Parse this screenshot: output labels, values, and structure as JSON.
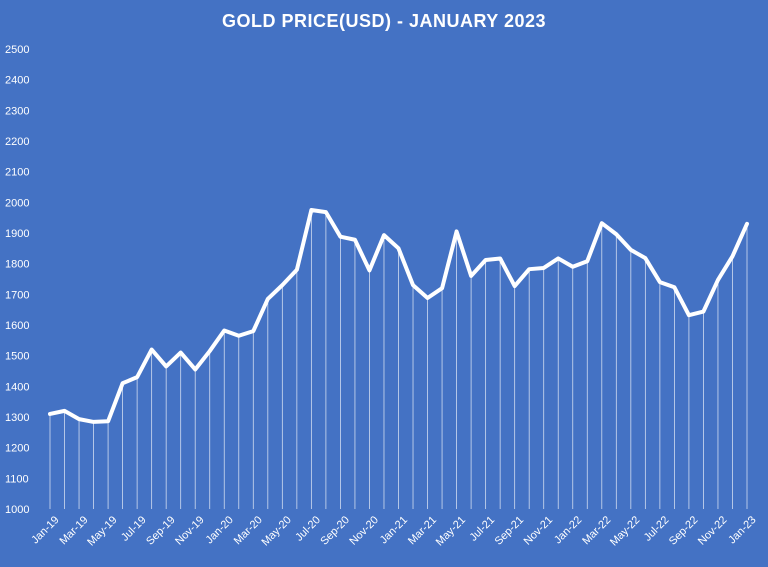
{
  "chart_data": {
    "type": "line",
    "title": "GOLD PRICE(USD) - JANUARY 2023",
    "xlabel": "",
    "ylabel": "",
    "ylim": [
      1000,
      2500
    ],
    "yticks": [
      1000,
      1100,
      1200,
      1300,
      1400,
      1500,
      1600,
      1700,
      1800,
      1900,
      2000,
      2100,
      2200,
      2300,
      2400,
      2500
    ],
    "grid": false,
    "legend": "none",
    "x": [
      "Jan-19",
      "Feb-19",
      "Mar-19",
      "Apr-19",
      "May-19",
      "Jun-19",
      "Jul-19",
      "Aug-19",
      "Sep-19",
      "Oct-19",
      "Nov-19",
      "Dec-19",
      "Jan-20",
      "Feb-20",
      "Mar-20",
      "Apr-20",
      "May-20",
      "Jun-20",
      "Jul-20",
      "Aug-20",
      "Sep-20",
      "Oct-20",
      "Nov-20",
      "Dec-20",
      "Jan-21",
      "Feb-21",
      "Mar-21",
      "Apr-21",
      "May-21",
      "Jun-21",
      "Jul-21",
      "Aug-21",
      "Sep-21",
      "Oct-21",
      "Nov-21",
      "Dec-21",
      "Jan-22",
      "Feb-22",
      "Mar-22",
      "Apr-22",
      "May-22",
      "Jun-22",
      "Jul-22",
      "Aug-22",
      "Sep-22",
      "Oct-22",
      "Nov-22",
      "Dec-22",
      "Jan-23"
    ],
    "x_tick_labels": [
      "Jan-19",
      "Mar-19",
      "May-19",
      "Jul-19",
      "Sep-19",
      "Nov-19",
      "Jan-20",
      "Mar-20",
      "May-20",
      "Jul-20",
      "Sep-20",
      "Nov-20",
      "Jan-21",
      "Mar-21",
      "May-21",
      "Jul-21",
      "Sep-21",
      "Nov-21",
      "Jan-22",
      "Mar-22",
      "May-22",
      "Jul-22",
      "Sep-22",
      "Nov-22",
      "Jan-23"
    ],
    "series": [
      {
        "values": [
          1310,
          1320,
          1293,
          1284,
          1286,
          1410,
          1430,
          1520,
          1465,
          1510,
          1455,
          1515,
          1582,
          1565,
          1580,
          1685,
          1730,
          1780,
          1975,
          1968,
          1888,
          1878,
          1778,
          1893,
          1850,
          1730,
          1688,
          1720,
          1905,
          1760,
          1812,
          1817,
          1727,
          1782,
          1786,
          1817,
          1790,
          1808,
          1932,
          1896,
          1845,
          1818,
          1740,
          1723,
          1632,
          1644,
          1747,
          1824,
          1930
        ]
      }
    ],
    "colors": {
      "background": "#4472C4",
      "line": "#FFFFFF",
      "drop_lines": "#FFFFFF",
      "text": "#FFFFFF"
    }
  }
}
